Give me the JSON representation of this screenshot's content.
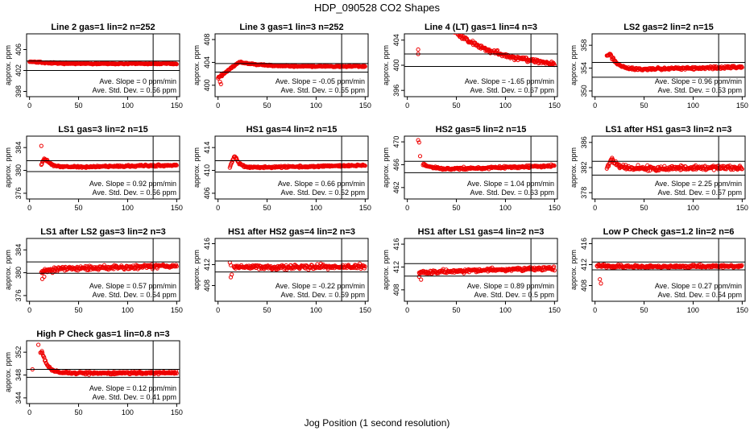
{
  "page": {
    "title": "HDP_090528  CO2 Shapes",
    "xlabel": "Jog Position (1 second resolution)"
  },
  "chart_data": [
    {
      "type": "scatter",
      "title": "Line 2 gas=1 lin=2 n=252",
      "ylabel": "approx. ppm",
      "xlim": [
        -3,
        153
      ],
      "ylim": [
        397,
        409
      ],
      "yticks": [
        398,
        402,
        406
      ],
      "xticks": [
        0,
        50,
        100,
        150
      ],
      "hlines": [
        403.8,
        402.0
      ],
      "vline": 126,
      "slope": "Ave. Slope =  0  ppm/min",
      "sd": "Ave. Std. Dev. =  0.56  ppm",
      "shape": {
        "x0": 0,
        "start": 403.7,
        "peak": 403.7,
        "tp": 1,
        "plateau": 403.3,
        "end": 403.3,
        "k": 0.05,
        "noise": 0.12,
        "early": []
      }
    },
    {
      "type": "scatter",
      "title": "Line 3 gas=1 lin=3 n=252",
      "ylabel": "approx. ppm",
      "xlim": [
        -3,
        153
      ],
      "ylim": [
        398,
        409
      ],
      "yticks": [
        400,
        404,
        408
      ],
      "xticks": [
        0,
        50,
        100,
        150
      ],
      "hlines": [
        403.8,
        402.3
      ],
      "vline": 126,
      "slope": "Ave. Slope =  -0.05  ppm/min",
      "sd": "Ave. Std. Dev. =  0.55  ppm",
      "shape": {
        "x0": 0,
        "start": 401.3,
        "peak": 404.1,
        "tp": 22,
        "plateau": 403.3,
        "end": 403.3,
        "k": 0.05,
        "noise": 0.12,
        "early": [
          [
            2,
            400.6
          ],
          [
            3,
            400.2
          ],
          [
            4,
            401.6
          ],
          [
            6,
            402.0
          ]
        ]
      }
    },
    {
      "type": "scatter",
      "title": "Line 4 (LT) gas=1 lin=4 n=3",
      "ylabel": "approx. ppm",
      "xlim": [
        -3,
        153
      ],
      "ylim": [
        395,
        405
      ],
      "yticks": [
        396,
        400,
        404
      ],
      "xticks": [
        0,
        50,
        100,
        150
      ],
      "hlines": [
        401.8,
        399.8
      ],
      "vline": 126,
      "slope": "Ave. Slope =  -1.65  ppm/min",
      "sd": "Ave. Std. Dev. =  0.67  ppm",
      "shape": {
        "x0": 45,
        "start": 405.8,
        "peak": 405.8,
        "tp": 1,
        "plateau": 401.6,
        "end": 400.0,
        "k": 0.03,
        "noise": 0.3,
        "early": [
          [
            11,
            402.5
          ],
          [
            11,
            401.8
          ]
        ]
      }
    },
    {
      "type": "scatter",
      "title": "LS2 gas=2 lin=2 n=15",
      "ylabel": "approx. ppm",
      "xlim": [
        -3,
        153
      ],
      "ylim": [
        349,
        360
      ],
      "yticks": [
        350,
        354,
        358
      ],
      "xticks": [
        0,
        50,
        100,
        150
      ],
      "hlines": [
        355.0,
        352.4
      ],
      "vline": 126,
      "slope": "Ave. Slope =  0.96  ppm/min",
      "sd": "Ave. Std. Dev. =  0.53  ppm",
      "shape": {
        "x0": 12,
        "start": 356.0,
        "peak": 356.6,
        "tp": 3,
        "plateau": 353.6,
        "end": 354.2,
        "k": 0.12,
        "noise": 0.2,
        "early": []
      }
    },
    {
      "type": "scatter",
      "title": "LS1 gas=3 lin=2 n=15",
      "ylabel": "approx. ppm",
      "xlim": [
        -3,
        153
      ],
      "ylim": [
        375,
        386
      ],
      "yticks": [
        376,
        380,
        384
      ],
      "xticks": [
        0,
        50,
        100,
        150
      ],
      "hlines": [
        381.7,
        379.8
      ],
      "vline": 126,
      "slope": "Ave. Slope =  0.92  ppm/min",
      "sd": "Ave. Std. Dev. =  0.56  ppm",
      "shape": {
        "x0": 12,
        "start": 381.0,
        "peak": 382.2,
        "tp": 3,
        "plateau": 380.5,
        "end": 380.9,
        "k": 0.15,
        "noise": 0.15,
        "early": [
          [
            12,
            384.3
          ]
        ]
      }
    },
    {
      "type": "scatter",
      "title": "HS1 gas=4 lin=2 n=15",
      "ylabel": "approx. ppm",
      "xlim": [
        -3,
        153
      ],
      "ylim": [
        405,
        416
      ],
      "yticks": [
        406,
        410,
        414
      ],
      "xticks": [
        0,
        50,
        100,
        150
      ],
      "hlines": [
        411.7,
        409.7
      ],
      "vline": 126,
      "slope": "Ave. Slope =  0.66  ppm/min",
      "sd": "Ave. Std. Dev. =  0.52  ppm",
      "shape": {
        "x0": 12,
        "start": 410.5,
        "peak": 412.6,
        "tp": 5,
        "plateau": 410.4,
        "end": 410.9,
        "k": 0.2,
        "noise": 0.15,
        "early": []
      }
    },
    {
      "type": "scatter",
      "title": "HS2 gas=5 lin=2 n=15",
      "ylabel": "approx. ppm",
      "xlim": [
        -3,
        153
      ],
      "ylim": [
        460,
        471
      ],
      "yticks": [
        462,
        466,
        470
      ],
      "xticks": [
        0,
        50,
        100,
        150
      ],
      "hlines": [
        466.6,
        464.6
      ],
      "vline": 126,
      "slope": "Ave. Slope =  1.04  ppm/min",
      "sd": "Ave. Std. Dev. =  0.63  ppm",
      "shape": {
        "x0": 16,
        "start": 466.0,
        "peak": 466.0,
        "tp": 1,
        "plateau": 465.1,
        "end": 465.8,
        "k": 0.1,
        "noise": 0.2,
        "early": [
          [
            11,
            470.3
          ],
          [
            12,
            469.9
          ],
          [
            13,
            467.5
          ]
        ]
      }
    },
    {
      "type": "scatter",
      "title": "LS1 after HS1 gas=3 lin=2 n=3",
      "ylabel": "approx. ppm",
      "xlim": [
        -3,
        153
      ],
      "ylim": [
        377,
        387
      ],
      "yticks": [
        378,
        382,
        386
      ],
      "xticks": [
        0,
        50,
        100,
        150
      ],
      "hlines": [
        383.0,
        380.8
      ],
      "vline": 126,
      "slope": "Ave. Slope =  2.25  ppm/min",
      "sd": "Ave. Std. Dev. =  0.57  ppm",
      "shape": {
        "x0": 12,
        "start": 382.0,
        "peak": 383.3,
        "tp": 5,
        "plateau": 381.8,
        "end": 382.0,
        "k": 0.15,
        "noise": 0.35,
        "early": []
      }
    },
    {
      "type": "scatter",
      "title": "LS1 after LS2 gas=3 lin=2 n=3",
      "ylabel": "approx. ppm",
      "xlim": [
        -3,
        153
      ],
      "ylim": [
        375,
        386
      ],
      "yticks": [
        376,
        380,
        384
      ],
      "xticks": [
        0,
        50,
        100,
        150
      ],
      "hlines": [
        381.9,
        379.9
      ],
      "vline": 126,
      "slope": "Ave. Slope =  0.57  ppm/min",
      "sd": "Ave. Std. Dev. =  0.54  ppm",
      "shape": {
        "x0": 12,
        "start": 380.0,
        "peak": 380.2,
        "tp": 2,
        "plateau": 380.6,
        "end": 381.2,
        "k": 0.1,
        "noise": 0.35,
        "early": [
          [
            13,
            378.9
          ],
          [
            15,
            379.3
          ]
        ]
      }
    },
    {
      "type": "scatter",
      "title": "HS1 after HS2 gas=4 lin=2 n=3",
      "ylabel": "approx. ppm",
      "xlim": [
        -3,
        153
      ],
      "ylim": [
        405,
        417
      ],
      "yticks": [
        408,
        412,
        416
      ],
      "xticks": [
        0,
        50,
        100,
        150
      ],
      "hlines": [
        412.7,
        410.6
      ],
      "vline": 126,
      "slope": "Ave. Slope =  -0.22  ppm/min",
      "sd": "Ave. Std. Dev. =  0.59  ppm",
      "shape": {
        "x0": 16,
        "start": 411.6,
        "peak": 411.6,
        "tp": 1,
        "plateau": 411.5,
        "end": 411.6,
        "k": 0.1,
        "noise": 0.4,
        "early": [
          [
            12,
            412.4
          ],
          [
            13,
            411.9
          ],
          [
            13,
            409.6
          ],
          [
            14,
            410.1
          ]
        ]
      }
    },
    {
      "type": "scatter",
      "title": "HS1 after LS1 gas=4 lin=2 n=3",
      "ylabel": "approx. ppm",
      "xlim": [
        -3,
        153
      ],
      "ylim": [
        406,
        417
      ],
      "yticks": [
        408,
        412,
        416
      ],
      "xticks": [
        0,
        50,
        100,
        150
      ],
      "hlines": [
        412.6,
        410.4
      ],
      "vline": 126,
      "slope": "Ave. Slope =  0.89  ppm/min",
      "sd": "Ave. Std. Dev. =  0.5  ppm",
      "shape": {
        "x0": 12,
        "start": 411.0,
        "peak": 411.0,
        "tp": 1,
        "plateau": 411.1,
        "end": 411.8,
        "k": 0.1,
        "noise": 0.3,
        "early": [
          [
            12,
            410.3
          ],
          [
            14,
            409.8
          ]
        ]
      }
    },
    {
      "type": "scatter",
      "title": "Low P Check gas=1.2 lin=2 n=6",
      "ylabel": "approx. ppm",
      "xlim": [
        -3,
        153
      ],
      "ylim": [
        405,
        417
      ],
      "yticks": [
        408,
        412,
        416
      ],
      "xticks": [
        0,
        50,
        100,
        150
      ],
      "hlines": [
        412.5,
        411.0
      ],
      "vline": 126,
      "slope": "Ave. Slope =  0.27  ppm/min",
      "sd": "Ave. Std. Dev. =  0.54  ppm",
      "shape": {
        "x0": 2,
        "start": 411.8,
        "peak": 411.8,
        "tp": 1,
        "plateau": 411.6,
        "end": 411.7,
        "k": 0.1,
        "noise": 0.25,
        "early": [
          [
            5,
            409.2
          ],
          [
            6,
            408.4
          ]
        ]
      }
    },
    {
      "type": "scatter",
      "title": "High P Check gas=1 lin=0.8 n=3",
      "ylabel": "approx. ppm",
      "xlim": [
        -3,
        153
      ],
      "ylim": [
        343,
        354
      ],
      "yticks": [
        344,
        348,
        352
      ],
      "xticks": [
        0,
        50,
        100,
        150
      ],
      "hlines": [
        349.0,
        347.6
      ],
      "vline": 126,
      "slope": "Ave. Slope =  0.12  ppm/min",
      "sd": "Ave. Std. Dev. =  0.41  ppm",
      "shape": {
        "x0": 12,
        "start": 352.0,
        "peak": 352.0,
        "tp": 1,
        "plateau": 348.3,
        "end": 348.4,
        "k": 0.18,
        "noise": 0.2,
        "early": [
          [
            9,
            353.3
          ],
          [
            11,
            351.9
          ],
          [
            3,
            349.0
          ]
        ]
      }
    }
  ]
}
